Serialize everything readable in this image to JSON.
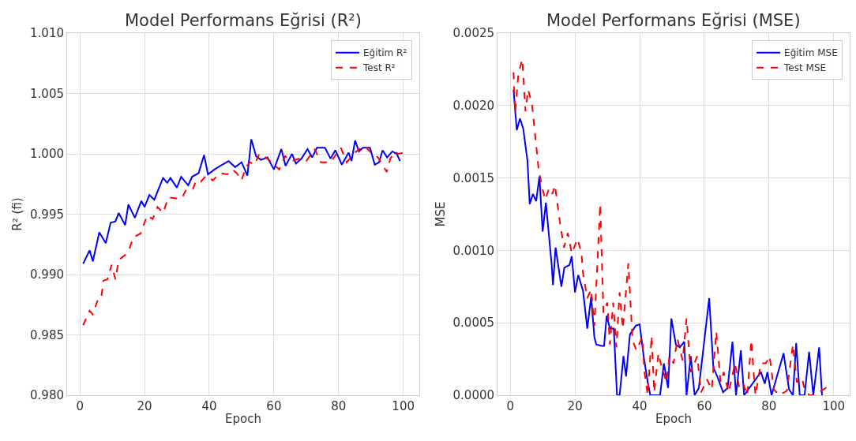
{
  "chart_data": [
    {
      "type": "line",
      "title": "Model Performans Eğrisi (R²)",
      "xlabel": "Epoch",
      "ylabel": "R² (fi)",
      "xlim": [
        -3.95,
        104.95
      ],
      "xticks": [
        0,
        20,
        40,
        60,
        80,
        100
      ],
      "ylim": [
        0.98,
        1.01
      ],
      "yticks": [
        {
          "value": 0.98,
          "label": "0.980"
        },
        {
          "value": 0.985,
          "label": "0.985"
        },
        {
          "value": 0.99,
          "label": "0.990"
        },
        {
          "value": 0.995,
          "label": "0.995"
        },
        {
          "value": 1.0,
          "label": "1.000"
        },
        {
          "value": 1.005,
          "label": "1.005"
        },
        {
          "value": 1.01,
          "label": "1.010"
        }
      ],
      "grid": true,
      "legend": "top right",
      "series": [
        {
          "name": "Eğitim R²",
          "color": "#0000ff",
          "line_style": "solid",
          "x": [
            1,
            3,
            4,
            6,
            8,
            9.5,
            11,
            12,
            14,
            15,
            17,
            19,
            20,
            21.5,
            23,
            25.7,
            27,
            28,
            30,
            31.3,
            33.5,
            34.7,
            36.7,
            38.4,
            39.6,
            41.6,
            44,
            46,
            48,
            50,
            51.8,
            53,
            54.5,
            56,
            58,
            60,
            62.3,
            63.6,
            65.6,
            66.8,
            68.5,
            70.4,
            71.8,
            73.3,
            75.8,
            77.5,
            79,
            81,
            83.1,
            84,
            85.1,
            86.3,
            87.5,
            89.7,
            91.2,
            92.5,
            93.6,
            95,
            96.6,
            98,
            99
          ],
          "values": [
            0.9909,
            0.992,
            0.9911,
            0.9935,
            0.9926,
            0.9943,
            0.9944,
            0.9951,
            0.9941,
            0.9958,
            0.9947,
            0.9961,
            0.9956,
            0.9966,
            0.9962,
            0.998,
            0.9976,
            0.998,
            0.9972,
            0.9981,
            0.9974,
            0.9981,
            0.9984,
            0.9999,
            0.9983,
            0.9987,
            0.9991,
            0.9994,
            0.9989,
            0.9993,
            0.9982,
            1.0012,
            0.9998,
            0.9995,
            0.9997,
            0.9987,
            1.0004,
            0.999,
            1.0,
            0.9992,
            0.9996,
            1.0004,
            0.9997,
            1.0005,
            1.0005,
            0.9996,
            1.0003,
            0.9991,
            1.0001,
            0.9994,
            1.0011,
            1.0002,
            1.0005,
            1.0005,
            0.9991,
            0.9993,
            1.0003,
            0.9997,
            1.0002,
            1.0,
            0.9994
          ]
        },
        {
          "name": "Test R²",
          "color": "#ff0000",
          "line_style": "dashed",
          "x": [
            1,
            3,
            4,
            5.4,
            6.5,
            7.3,
            8.5,
            9.8,
            11,
            12,
            13.9,
            15.1,
            16.6,
            18.8,
            20.8,
            22.5,
            24,
            25.7,
            27.4,
            29.8,
            31.5,
            33,
            35,
            35.9,
            37.4,
            39.1,
            41.1,
            43.3,
            45.6,
            47.2,
            48.5,
            50,
            51.3,
            52.6,
            54,
            55.5,
            57,
            59.4,
            61.6,
            63.5,
            65.5,
            67.8,
            70,
            72.6,
            74.5,
            77.5,
            80.7,
            82.5,
            85,
            88,
            90,
            92.2,
            94.9,
            96,
            97.3,
            98.5,
            100
          ],
          "values": [
            0.9858,
            0.987,
            0.9867,
            0.9878,
            0.9879,
            0.9895,
            0.9896,
            0.9908,
            0.9896,
            0.9912,
            0.9916,
            0.992,
            0.9931,
            0.9934,
            0.9949,
            0.9946,
            0.9956,
            0.9951,
            0.9964,
            0.9963,
            0.9963,
            0.9971,
            0.9971,
            0.9978,
            0.9977,
            0.9982,
            0.9978,
            0.9984,
            0.9983,
            0.9987,
            0.9984,
            0.9978,
            0.9989,
            0.9993,
            0.9991,
            1.0,
            0.9998,
            0.9993,
            0.9987,
            0.9998,
            0.9994,
            0.9996,
            0.9994,
            1.0004,
            0.9993,
            0.9993,
            1.0005,
            0.9993,
            1.0001,
            1.0007,
            1.0001,
            0.9997,
            0.9985,
            0.9996,
            1.0002,
            1.0,
            1.0001
          ]
        }
      ]
    },
    {
      "type": "line",
      "title": "Model Performans Eğrisi (MSE)",
      "xlabel": "Epoch",
      "ylabel": "MSE",
      "xlim": [
        -3.95,
        104.95
      ],
      "xticks": [
        0,
        20,
        40,
        60,
        80,
        100
      ],
      "ylim": [
        0,
        0.0025
      ],
      "yticks": [
        {
          "value": 0,
          "label": "0.0000"
        },
        {
          "value": 0.0005,
          "label": "0.0005"
        },
        {
          "value": 0.001,
          "label": "0.0010"
        },
        {
          "value": 0.0015,
          "label": "0.0015"
        },
        {
          "value": 0.002,
          "label": "0.0020"
        },
        {
          "value": 0.0025,
          "label": "0.0025"
        }
      ],
      "grid": true,
      "legend": "top right",
      "series": [
        {
          "name": "Eğitim MSE",
          "color": "#0000ff",
          "line_style": "solid",
          "x": [
            1,
            2,
            3,
            4,
            5.3,
            6,
            7,
            8,
            9,
            10,
            11,
            12.8,
            13.2,
            14,
            15.8,
            16.7,
            18.3,
            19,
            20,
            21,
            22.5,
            23.8,
            25,
            26,
            26.6,
            28.3,
            29,
            29.8,
            30.8,
            32,
            33,
            33.8,
            35,
            35.8,
            37,
            38.8,
            40,
            41.3,
            42.5,
            43.3,
            46.3,
            47.5,
            48.8,
            49.8,
            51.2,
            52.4,
            53.8,
            54.5,
            55.8,
            57,
            58.3,
            61.5,
            62.8,
            64,
            65.8,
            67.2,
            68.7,
            69.8,
            71.3,
            72.3,
            77.5,
            78.7,
            79.5,
            80.8,
            84.5,
            86.2,
            87.4,
            88.4,
            89.5,
            91,
            92.4,
            93.7,
            95.5,
            96.4
          ],
          "values": [
            0.00211,
            0.00183,
            0.00191,
            0.00184,
            0.00162,
            0.00132,
            0.00139,
            0.00134,
            0.00151,
            0.00113,
            0.00133,
            0.0009,
            0.00076,
            0.00102,
            0.00075,
            0.00088,
            0.0009,
            0.00096,
            0.00071,
            0.00083,
            0.00072,
            0.00046,
            0.00068,
            0.0004,
            0.00035,
            0.00034,
            0.00034,
            0.00055,
            0.00046,
            0.00046,
            0.0,
            0.0,
            0.00027,
            0.00013,
            0.00042,
            0.00048,
            0.00049,
            0.00026,
            9e-05,
            0.0,
            0.0,
            0.00022,
            5e-05,
            0.00053,
            0.00035,
            0.00033,
            0.00037,
            0.0,
            0.00027,
            0.0,
            5e-05,
            0.00067,
            0.00019,
            0.00013,
            2e-05,
            5e-05,
            0.00037,
            0.0,
            0.00031,
            0.0,
            0.00016,
            8e-05,
            0.00016,
            0.0,
            0.00029,
            4e-05,
            0.0,
            0.00036,
            0.0,
            0.0,
            0.0003,
            0.0,
            0.00033,
            0.0
          ]
        },
        {
          "name": "Test MSE",
          "color": "#ff0000",
          "line_style": "dashed",
          "x": [
            1,
            1.5,
            2.5,
            3.7,
            4.7,
            5.5,
            6.7,
            7.8,
            8.8,
            10,
            10.8,
            12,
            13,
            13.8,
            15.3,
            16.6,
            17.8,
            19,
            20.8,
            22,
            22.5,
            23.8,
            25,
            26,
            27.8,
            28.8,
            30,
            30.8,
            31.8,
            32.8,
            33.8,
            34.8,
            36.5,
            37.8,
            39,
            40.8,
            41.5,
            42.5,
            43.7,
            44.5,
            45.8,
            46.5,
            48.3,
            49.2,
            50.5,
            51.7,
            53.3,
            54.5,
            55.8,
            57.8,
            59,
            60.8,
            62.3,
            63.7,
            65,
            66,
            67.5,
            69.5,
            70.8,
            72,
            73.3,
            74.5,
            75.8,
            77.5,
            79,
            80.2,
            81.5,
            83.2,
            85.5,
            87.4,
            88.6,
            90.2,
            91,
            92.5,
            94,
            97.5,
            97.8
          ],
          "values": [
            0.00223,
            0.00195,
            0.00222,
            0.00232,
            0.00196,
            0.00211,
            0.00201,
            0.00177,
            0.00155,
            0.00142,
            0.00135,
            0.00143,
            0.00139,
            0.00145,
            0.0012,
            0.00102,
            0.00112,
            0.00098,
            0.00108,
            0.00098,
            0.00084,
            0.00067,
            0.00073,
            0.00048,
            0.00132,
            0.00057,
            0.00064,
            0.00035,
            0.00064,
            0.00033,
            0.00071,
            0.00046,
            0.00091,
            0.00038,
            0.00031,
            0.0004,
            0.00016,
            0.0,
            0.00041,
            2e-05,
            0.00029,
            0.00022,
            9e-05,
            0.00027,
            0.00022,
            0.00039,
            0.00024,
            0.00053,
            0.00016,
            0.00027,
            2e-05,
            0.00011,
            4e-05,
            0.00044,
            9e-05,
            0.00016,
            2e-05,
            0.00022,
            5e-05,
            8e-05,
            0.0,
            0.00038,
            0.0,
            0.00022,
            0.00022,
            0.00027,
            4e-05,
            0.0,
            3e-05,
            0.00035,
            9e-05,
            0.00012,
            4e-05,
            0.0,
            0.0,
            5e-05,
            0.0
          ]
        }
      ]
    }
  ]
}
